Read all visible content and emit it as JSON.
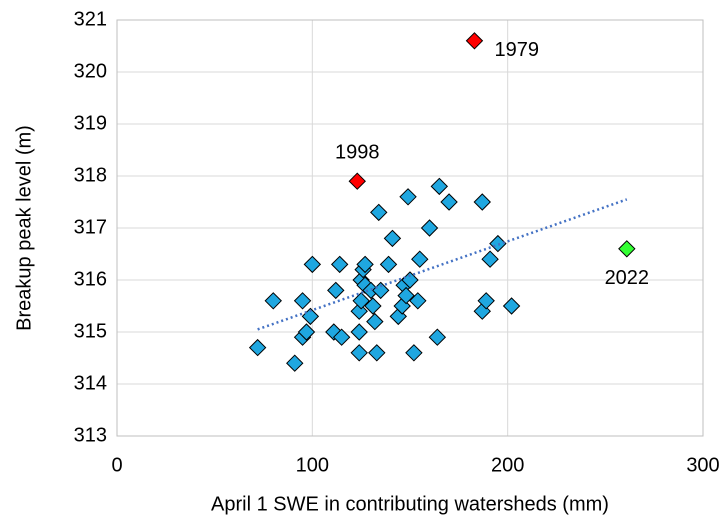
{
  "chart_data": {
    "type": "scatter",
    "xlabel": "April 1 SWE in contributing watersheds (mm)",
    "ylabel": "Breakup peak level (m)",
    "xlim": [
      0,
      300
    ],
    "xticks": [
      0,
      100,
      200,
      300
    ],
    "ylim": [
      313,
      321
    ],
    "yticks": [
      313,
      314,
      315,
      316,
      317,
      318,
      319,
      320,
      321
    ],
    "grid": true,
    "series": [
      {
        "color": "#1fa7e0",
        "x": [
          72,
          80,
          91,
          95,
          95,
          97,
          99,
          100,
          111,
          112,
          114,
          115,
          124,
          124,
          124,
          125,
          125,
          126,
          127,
          127,
          130,
          131,
          132,
          133,
          134,
          135,
          139,
          141,
          144,
          146,
          147,
          148,
          149,
          150,
          152,
          154,
          155,
          160,
          164,
          165,
          170,
          187,
          187,
          189,
          191,
          195,
          202
        ],
        "y": [
          314.7,
          315.6,
          314.4,
          315.6,
          314.9,
          315.0,
          315.3,
          316.3,
          315.0,
          315.8,
          316.3,
          314.9,
          315.0,
          315.4,
          314.6,
          315.6,
          316.0,
          316.2,
          315.9,
          316.3,
          315.8,
          315.5,
          315.2,
          314.6,
          317.3,
          315.8,
          316.3,
          316.8,
          315.3,
          315.5,
          315.9,
          315.7,
          317.6,
          316.0,
          314.6,
          315.6,
          316.4,
          317.0,
          314.9,
          317.8,
          317.5,
          315.4,
          317.5,
          315.6,
          316.4,
          316.7,
          315.5
        ]
      }
    ],
    "annotations": [
      {
        "text": "1998",
        "x": 123,
        "y": 317.9,
        "color": "#ff0000"
      },
      {
        "text": "1979",
        "x": 183,
        "y": 320.6,
        "color": "#ff0000"
      },
      {
        "text": "2022",
        "x": 261,
        "y": 316.6,
        "color": "#33ff33"
      }
    ],
    "trendline": {
      "color": "#4472c4",
      "x": [
        72,
        261
      ],
      "y": [
        315.05,
        317.55
      ]
    }
  }
}
